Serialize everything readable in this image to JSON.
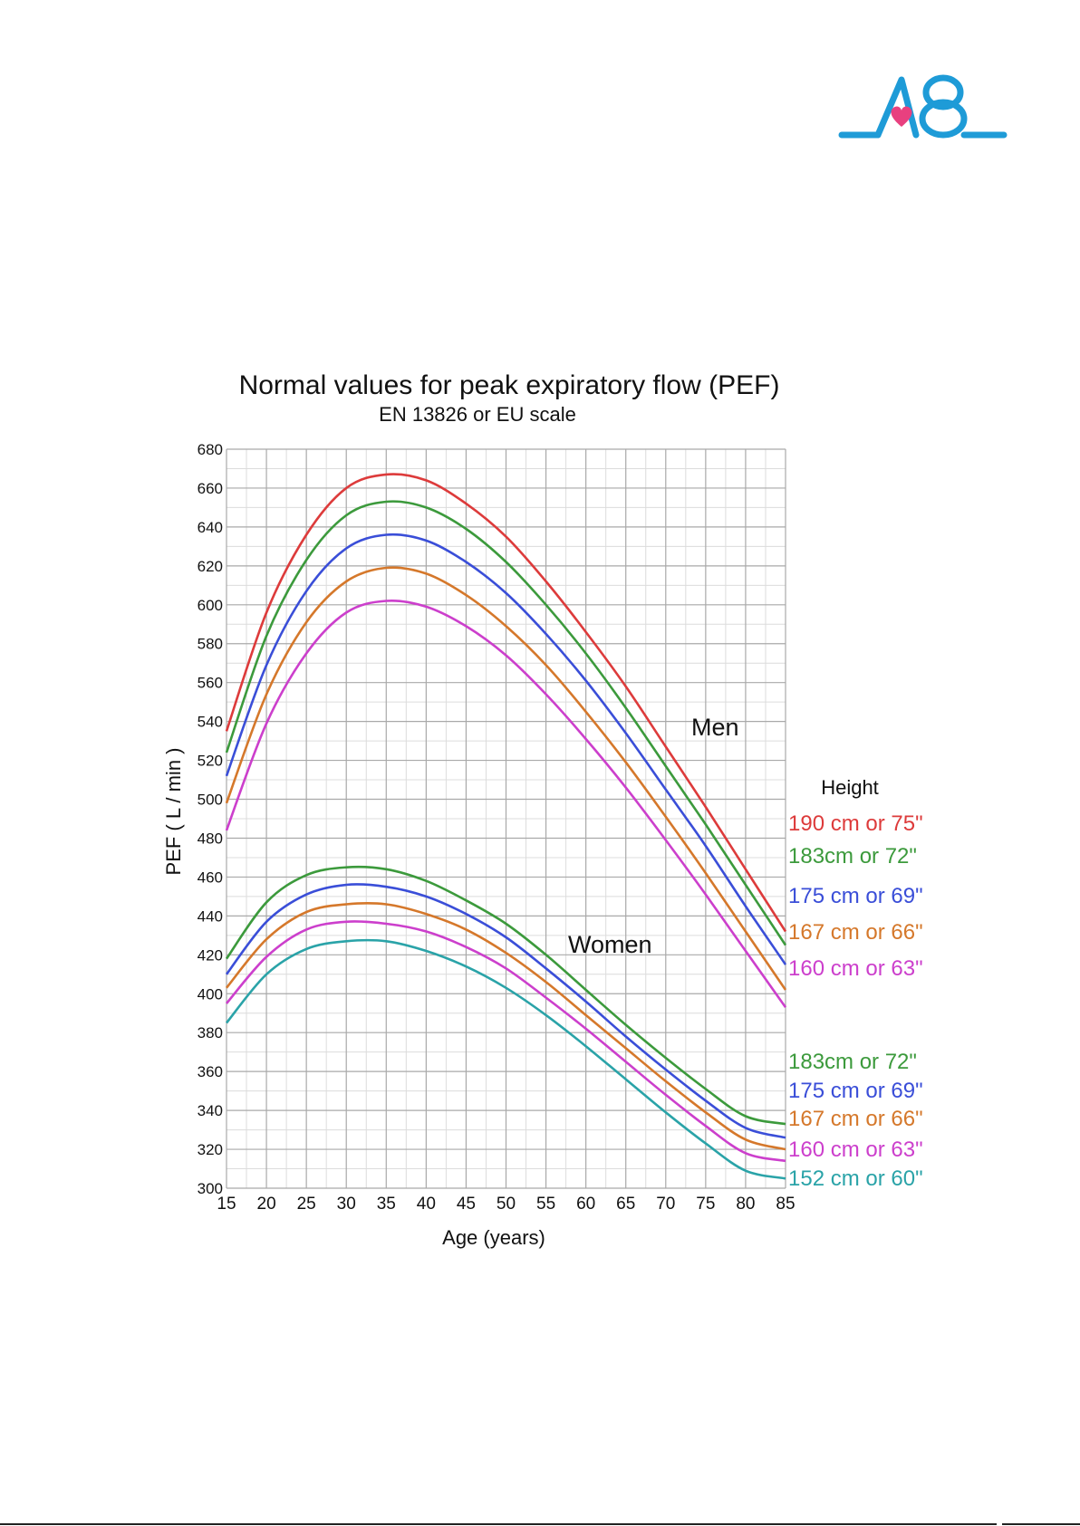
{
  "brand": {
    "logo_text": "A8",
    "logo_color": "#1e9bd7",
    "heart_color": "#e8407f"
  },
  "chart_data": {
    "type": "line",
    "title": "Normal values for peak expiratory flow (PEF)",
    "subtitle": "EN 13826 or EU scale",
    "xlabel": "Age (years)",
    "ylabel": "PEF ( L / min )",
    "xlim": [
      15,
      85
    ],
    "ylim": [
      300,
      680
    ],
    "x_ticks": [
      15,
      20,
      25,
      30,
      35,
      40,
      45,
      50,
      55,
      60,
      65,
      70,
      75,
      80,
      85
    ],
    "y_ticks": [
      300,
      320,
      340,
      360,
      380,
      400,
      420,
      440,
      460,
      480,
      500,
      520,
      540,
      560,
      580,
      600,
      620,
      640,
      660,
      680
    ],
    "grid": true,
    "legend_title": "Height",
    "annotations": [
      "Men",
      "Women"
    ],
    "x": [
      15,
      20,
      25,
      30,
      35,
      40,
      45,
      50,
      55,
      60,
      65,
      70,
      75,
      80,
      85
    ],
    "series": [
      {
        "name": "190 cm or 75\"",
        "group": "Men",
        "color": "#dd3b3b",
        "values": [
          535,
          596,
          636,
          660,
          667,
          664,
          652,
          635,
          612,
          586,
          558,
          527,
          496,
          464,
          432
        ]
      },
      {
        "name": "183cm or 72\"",
        "group": "Men",
        "color": "#3c9a3c",
        "values": [
          524,
          584,
          623,
          646,
          653,
          650,
          639,
          622,
          600,
          575,
          547,
          517,
          487,
          456,
          425
        ]
      },
      {
        "name": "175 cm or 69\"",
        "group": "Men",
        "color": "#3a4ed8",
        "values": [
          512,
          569,
          607,
          629,
          636,
          633,
          622,
          606,
          585,
          561,
          534,
          505,
          476,
          445,
          415
        ]
      },
      {
        "name": "167 cm or 66\"",
        "group": "Men",
        "color": "#d5782b",
        "values": [
          498,
          554,
          591,
          612,
          619,
          616,
          605,
          589,
          569,
          545,
          519,
          491,
          462,
          432,
          402
        ]
      },
      {
        "name": "160 cm or 63\"",
        "group": "Men",
        "color": "#cc3fcc",
        "values": [
          484,
          539,
          575,
          596,
          602,
          599,
          589,
          574,
          554,
          531,
          506,
          479,
          451,
          422,
          393
        ]
      },
      {
        "name": "183cm or 72\"",
        "group": "Women",
        "color": "#3c9a3c",
        "values": [
          418,
          447,
          461,
          465,
          464,
          458,
          448,
          436,
          420,
          402,
          384,
          367,
          351,
          337,
          333
        ]
      },
      {
        "name": "175 cm or 69\"",
        "group": "Women",
        "color": "#3a4ed8",
        "values": [
          410,
          437,
          451,
          456,
          455,
          450,
          441,
          429,
          413,
          396,
          378,
          361,
          345,
          331,
          326
        ]
      },
      {
        "name": "167 cm or 66\"",
        "group": "Women",
        "color": "#d5782b",
        "values": [
          403,
          428,
          442,
          446,
          446,
          441,
          433,
          421,
          406,
          389,
          372,
          355,
          339,
          325,
          320
        ]
      },
      {
        "name": "160 cm or 63\"",
        "group": "Women",
        "color": "#cc3fcc",
        "values": [
          395,
          419,
          433,
          437,
          436,
          432,
          424,
          413,
          398,
          382,
          365,
          348,
          332,
          318,
          314
        ]
      },
      {
        "name": "152 cm or 60\"",
        "group": "Women",
        "color": "#2aa3a8",
        "values": [
          385,
          410,
          423,
          427,
          427,
          422,
          414,
          403,
          389,
          373,
          356,
          339,
          323,
          309,
          305
        ]
      }
    ]
  }
}
